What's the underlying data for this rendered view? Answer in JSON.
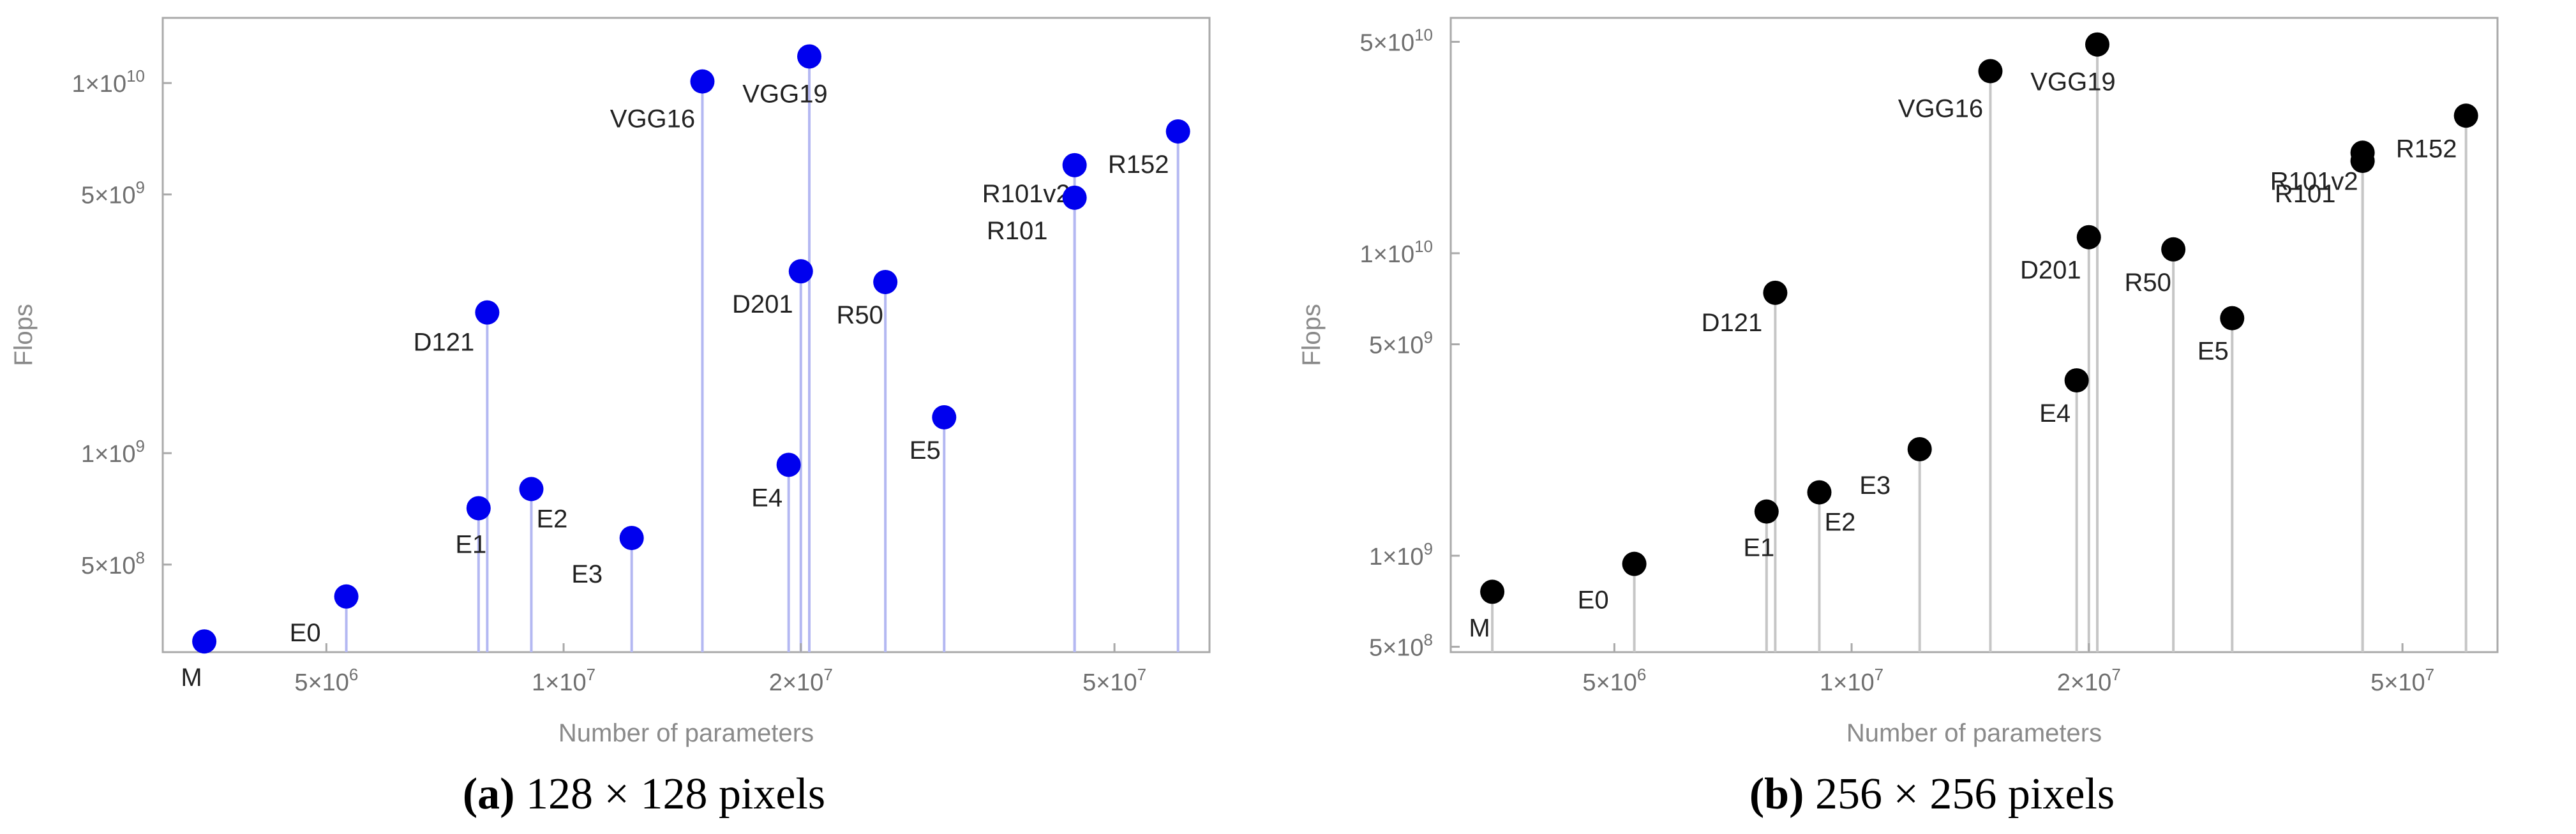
{
  "chart_data": [
    {
      "type": "scatter",
      "style": "stem",
      "caption_tag": "(a)",
      "caption_text": " 128 × 128 pixels",
      "xlabel": "Number of parameters",
      "ylabel": "Flops",
      "xscale": "log",
      "yscale": "log",
      "xlim": [
        3100000,
        66000000
      ],
      "ylim": [
        290000000,
        15000000000
      ],
      "xticks": [
        {
          "value": 5000000,
          "mant": "5",
          "exp": "6"
        },
        {
          "value": 10000000,
          "mant": "1",
          "exp": "7"
        },
        {
          "value": 20000000,
          "mant": "2",
          "exp": "7"
        },
        {
          "value": 50000000,
          "mant": "5",
          "exp": "7"
        }
      ],
      "yticks": [
        {
          "value": 500000000,
          "mant": "5",
          "exp": "8"
        },
        {
          "value": 1000000000,
          "mant": "1",
          "exp": "9"
        },
        {
          "value": 5000000000,
          "mant": "5",
          "exp": "9"
        },
        {
          "value": 10000000000,
          "mant": "1",
          "exp": "10"
        }
      ],
      "colors": {
        "point": "#0000ee",
        "stem": "#b4b8f2"
      },
      "points": [
        {
          "label": "M",
          "x": 3500000,
          "y": 310000000
        },
        {
          "label": "E0",
          "x": 5300000,
          "y": 410000000
        },
        {
          "label": "E1",
          "x": 7800000,
          "y": 710000000
        },
        {
          "label": "E2",
          "x": 9100000,
          "y": 800000000
        },
        {
          "label": "E3",
          "x": 12200000,
          "y": 590000000
        },
        {
          "label": "D121",
          "x": 8000000,
          "y": 2400000000
        },
        {
          "label": "VGG16",
          "x": 15000000,
          "y": 10100000000
        },
        {
          "label": "VGG19",
          "x": 20500000,
          "y": 11800000000
        },
        {
          "label": "E4",
          "x": 19300000,
          "y": 930000000
        },
        {
          "label": "D201",
          "x": 20000000,
          "y": 3100000000
        },
        {
          "label": "R50",
          "x": 25600000,
          "y": 2900000000
        },
        {
          "label": "E5",
          "x": 30400000,
          "y": 1250000000
        },
        {
          "label": "R101v2",
          "x": 44500000,
          "y": 6000000000
        },
        {
          "label": "R101",
          "x": 44500000,
          "y": 4900000000
        },
        {
          "label": "R152",
          "x": 60200000,
          "y": 7400000000
        }
      ]
    },
    {
      "type": "scatter",
      "style": "stem",
      "caption_tag": "(b)",
      "caption_text": " 256 × 256 pixels",
      "xlabel": "Number of parameters",
      "ylabel": "Flops",
      "xscale": "log",
      "yscale": "log",
      "xlim": [
        3100000,
        66000000
      ],
      "ylim": [
        480000000,
        60000000000
      ],
      "xticks": [
        {
          "value": 5000000,
          "mant": "5",
          "exp": "6"
        },
        {
          "value": 10000000,
          "mant": "1",
          "exp": "7"
        },
        {
          "value": 20000000,
          "mant": "2",
          "exp": "7"
        },
        {
          "value": 50000000,
          "mant": "5",
          "exp": "7"
        }
      ],
      "yticks": [
        {
          "value": 500000000,
          "mant": "5",
          "exp": "8"
        },
        {
          "value": 1000000000,
          "mant": "1",
          "exp": "9"
        },
        {
          "value": 5000000000,
          "mant": "5",
          "exp": "9"
        },
        {
          "value": 10000000000,
          "mant": "1",
          "exp": "10"
        },
        {
          "value": 50000000000,
          "mant": "5",
          "exp": "10"
        }
      ],
      "colors": {
        "point": "#000000",
        "stem": "#c6c6c6"
      },
      "points": [
        {
          "label": "M",
          "x": 3500000,
          "y": 760000000
        },
        {
          "label": "E0",
          "x": 5300000,
          "y": 940000000
        },
        {
          "label": "E1",
          "x": 7800000,
          "y": 1400000000
        },
        {
          "label": "E2",
          "x": 9100000,
          "y": 1620000000
        },
        {
          "label": "E3",
          "x": 12200000,
          "y": 2250000000
        },
        {
          "label": "D121",
          "x": 8000000,
          "y": 7400000000
        },
        {
          "label": "VGG16",
          "x": 15000000,
          "y": 40000000000
        },
        {
          "label": "VGG19",
          "x": 20500000,
          "y": 49000000000
        },
        {
          "label": "E4",
          "x": 19300000,
          "y": 3800000000
        },
        {
          "label": "D201",
          "x": 20000000,
          "y": 11300000000
        },
        {
          "label": "R50",
          "x": 25600000,
          "y": 10300000000
        },
        {
          "label": "E5",
          "x": 30400000,
          "y": 6100000000
        },
        {
          "label": "R101v2",
          "x": 44500000,
          "y": 21500000000
        },
        {
          "label": "R101",
          "x": 44500000,
          "y": 20200000000
        },
        {
          "label": "R152",
          "x": 60200000,
          "y": 28500000000
        }
      ]
    }
  ]
}
